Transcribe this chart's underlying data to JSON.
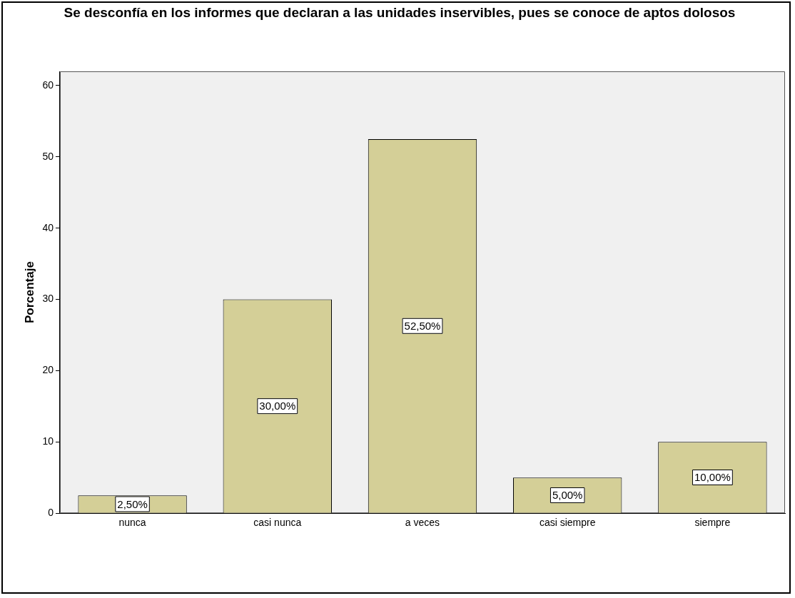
{
  "chart_data": {
    "type": "bar",
    "title": "Se desconfía en los informes que declaran a las unidades inservibles, pues se conoce de aptos dolosos",
    "ylabel": "Porcentaje",
    "categories": [
      "nunca",
      "casi nunca",
      "a veces",
      "casi siempre",
      "siempre"
    ],
    "values": [
      2.5,
      30,
      52.5,
      5,
      10
    ],
    "value_labels": [
      "2,50%",
      "30,00%",
      "52,50%",
      "5,00%",
      "10,00%"
    ],
    "color": "#d4cf97",
    "ylim": [
      0,
      62
    ],
    "yticks": [
      0,
      10,
      20,
      30,
      40,
      50,
      60
    ],
    "grid": false,
    "legend": false
  }
}
